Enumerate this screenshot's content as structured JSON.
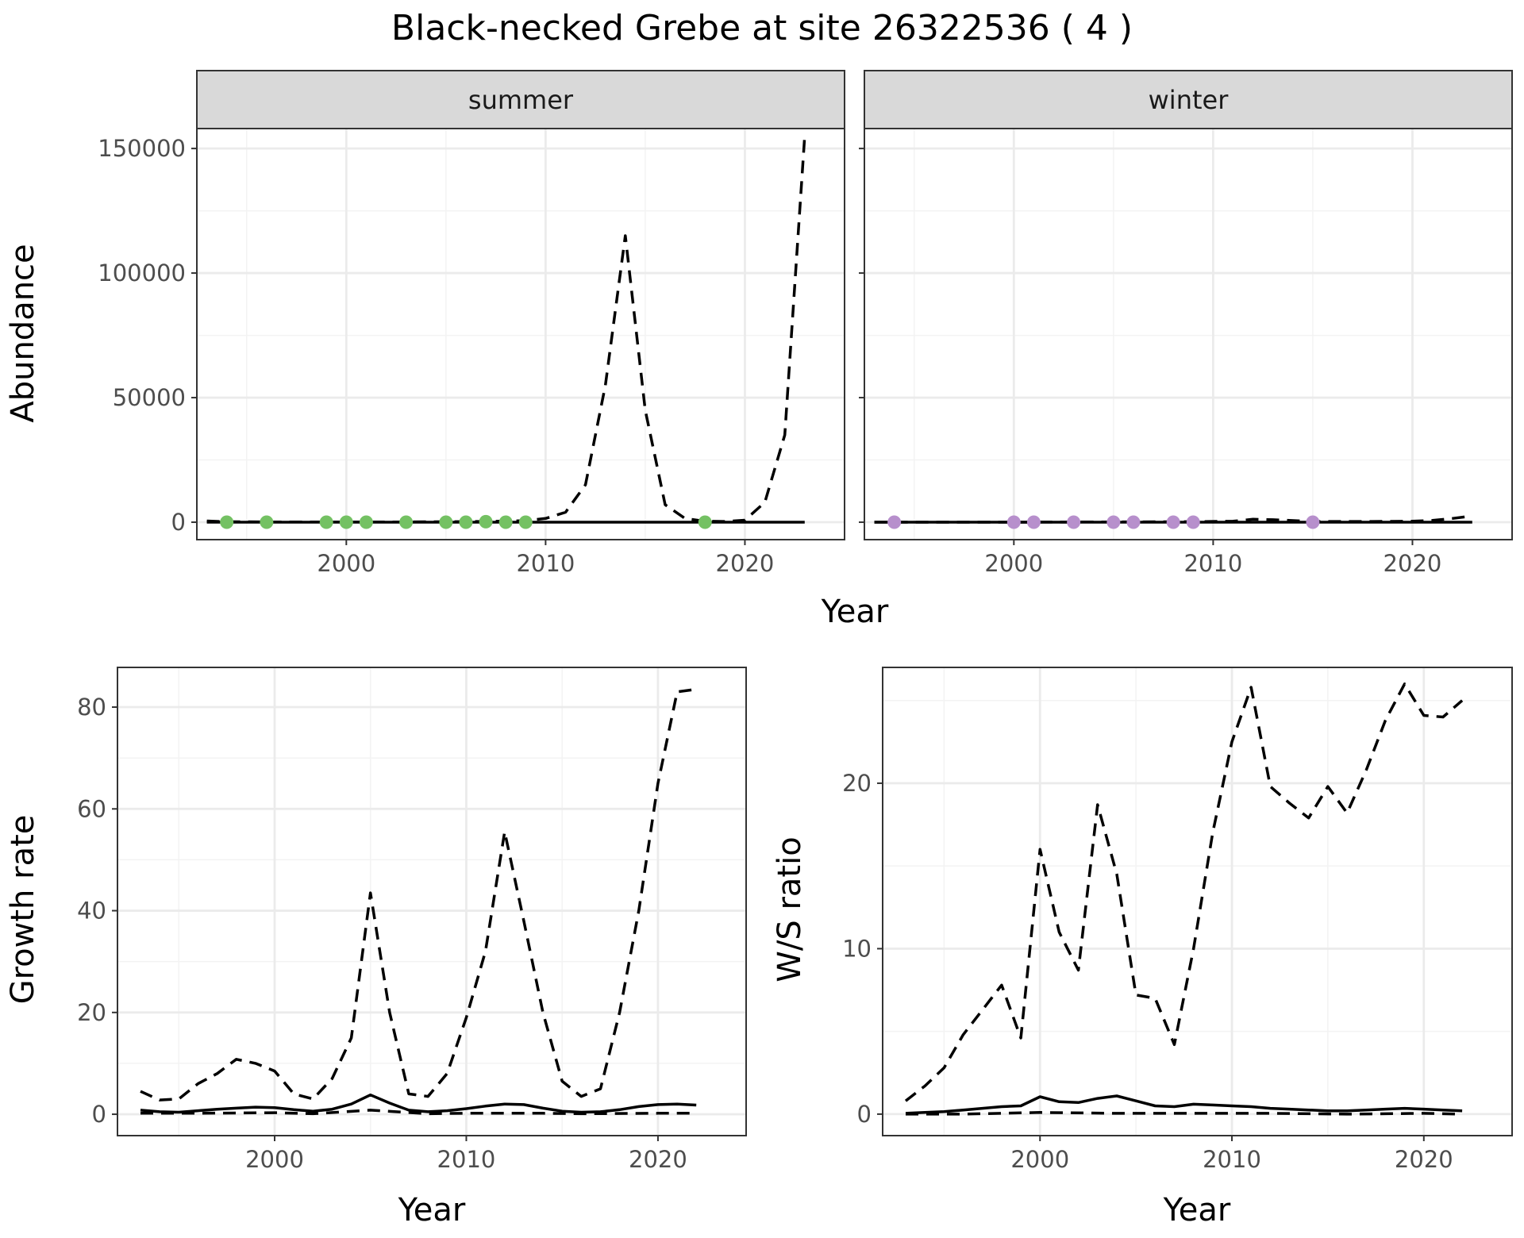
{
  "title": "Black-necked Grebe at site 26322536 ( 4 )",
  "chart_data": [
    {
      "type": "line",
      "facet": "summer",
      "xlabel": "Year",
      "ylabel": "Abundance",
      "xlim": [
        1992.5,
        2025.0
      ],
      "ylim": [
        -7000,
        158000
      ],
      "x_ticks": [
        2000,
        2010,
        2020
      ],
      "y_ticks": [
        0,
        50000,
        100000,
        150000
      ],
      "x_tick_labels": [
        "2000",
        "2010",
        "2020"
      ],
      "y_tick_labels": [
        "0",
        "50000",
        "100000",
        "150000"
      ],
      "grid": true,
      "point_color": "#74c163",
      "points": {
        "x": [
          1994,
          1996,
          1999,
          2000,
          2001,
          2003,
          2005,
          2006,
          2007,
          2008,
          2009,
          2018
        ],
        "y": [
          0,
          0,
          0,
          0,
          0,
          0,
          0,
          0,
          200,
          0,
          0,
          0
        ]
      },
      "series": [
        {
          "style": "solid",
          "x": [
            1993,
            1996,
            2000,
            2005,
            2010,
            2015,
            2020,
            2023
          ],
          "y": [
            0,
            0,
            0,
            0,
            0,
            0,
            0,
            0
          ]
        },
        {
          "style": "dashed",
          "x": [
            1993,
            1994,
            1996,
            1999,
            2001,
            2003,
            2005,
            2007,
            2009,
            2010,
            2011,
            2012,
            2013,
            2014,
            2015,
            2016,
            2017,
            2018,
            2019,
            2020,
            2021,
            2022,
            2023
          ],
          "y": [
            500,
            200,
            100,
            100,
            100,
            100,
            200,
            300,
            600,
            1500,
            4000,
            15000,
            55000,
            115000,
            45000,
            7000,
            1500,
            400,
            300,
            800,
            8000,
            35000,
            155000
          ]
        }
      ]
    },
    {
      "type": "line",
      "facet": "winter",
      "xlabel": "Year",
      "ylabel": "Abundance",
      "xlim": [
        1992.5,
        2025.0
      ],
      "ylim": [
        -7000,
        158000
      ],
      "x_ticks": [
        2000,
        2010,
        2020
      ],
      "x_tick_labels": [
        "2000",
        "2010",
        "2020"
      ],
      "grid": true,
      "point_color": "#b78fcc",
      "points": {
        "x": [
          1994,
          2000,
          2001,
          2003,
          2005,
          2006,
          2008,
          2009,
          2015
        ],
        "y": [
          0,
          0,
          0,
          0,
          0,
          0,
          0,
          0,
          0
        ]
      },
      "series": [
        {
          "style": "solid",
          "x": [
            1993,
            2000,
            2010,
            2020,
            2023
          ],
          "y": [
            0,
            0,
            0,
            0,
            0
          ]
        },
        {
          "style": "dashed",
          "x": [
            1993,
            2000,
            2005,
            2009,
            2011,
            2012,
            2013,
            2015,
            2018,
            2020,
            2021,
            2022,
            2023
          ],
          "y": [
            0,
            0,
            100,
            200,
            400,
            1200,
            1000,
            300,
            300,
            400,
            700,
            1500,
            2500
          ]
        }
      ]
    },
    {
      "type": "line",
      "xlabel": "Year",
      "ylabel": "Growth rate",
      "xlim": [
        1991.8,
        2024.6
      ],
      "ylim": [
        -4.2,
        87.8
      ],
      "x_ticks": [
        2000,
        2010,
        2020
      ],
      "y_ticks": [
        0,
        20,
        40,
        60,
        80
      ],
      "x_tick_labels": [
        "2000",
        "2010",
        "2020"
      ],
      "y_tick_labels": [
        "0",
        "20",
        "40",
        "60",
        "80"
      ],
      "grid": true,
      "series": [
        {
          "style": "solid",
          "x": [
            1993,
            1994,
            1995,
            1996,
            1997,
            1998,
            1999,
            2000,
            2001,
            2002,
            2003,
            2004,
            2005,
            2006,
            2007,
            2008,
            2009,
            2010,
            2011,
            2012,
            2013,
            2014,
            2015,
            2016,
            2017,
            2018,
            2019,
            2020,
            2021,
            2022
          ],
          "y": [
            0.8,
            0.5,
            0.4,
            0.7,
            1.0,
            1.2,
            1.4,
            1.3,
            0.9,
            0.6,
            1.0,
            2.0,
            3.8,
            2.2,
            0.8,
            0.5,
            0.7,
            1.1,
            1.6,
            2.0,
            1.9,
            1.2,
            0.6,
            0.4,
            0.5,
            0.9,
            1.5,
            1.9,
            2.0,
            1.8
          ]
        },
        {
          "style": "dashed",
          "x": [
            1993,
            1994,
            1995,
            1996,
            1997,
            1998,
            1999,
            2000,
            2001,
            2002,
            2003,
            2004,
            2005,
            2006,
            2007,
            2008,
            2009,
            2010,
            2011,
            2012,
            2013,
            2014,
            2015,
            2016,
            2017,
            2018,
            2019,
            2020,
            2021,
            2022
          ],
          "y": [
            4.5,
            2.8,
            3.0,
            6.0,
            8.0,
            10.8,
            10.0,
            8.5,
            4.0,
            3.0,
            7.0,
            15.0,
            43.5,
            20.0,
            4.0,
            3.5,
            8.0,
            19.0,
            32.0,
            55.5,
            38.0,
            20.0,
            6.5,
            3.5,
            5.0,
            20.0,
            40.0,
            65.0,
            83.0,
            83.5
          ]
        },
        {
          "style": "dashed",
          "x": [
            1993,
            1996,
            2000,
            2002,
            2005,
            2008,
            2010,
            2014,
            2016,
            2020,
            2022
          ],
          "y": [
            0.2,
            0.2,
            0.3,
            0.1,
            0.8,
            0.1,
            0.2,
            0.2,
            0.1,
            0.2,
            0.2
          ]
        }
      ]
    },
    {
      "type": "line",
      "xlabel": "Year",
      "ylabel": "W/S ratio",
      "xlim": [
        1991.8,
        2024.6
      ],
      "ylim": [
        -1.3,
        27.0
      ],
      "x_ticks": [
        2000,
        2010,
        2020
      ],
      "y_ticks": [
        0,
        10,
        20
      ],
      "x_tick_labels": [
        "2000",
        "2010",
        "2020"
      ],
      "y_tick_labels": [
        "0",
        "10",
        "20"
      ],
      "grid": true,
      "series": [
        {
          "style": "solid",
          "x": [
            1993,
            1994,
            1995,
            1996,
            1997,
            1998,
            1999,
            2000,
            2001,
            2002,
            2003,
            2004,
            2005,
            2006,
            2007,
            2008,
            2009,
            2010,
            2011,
            2012,
            2013,
            2014,
            2015,
            2016,
            2017,
            2018,
            2019,
            2020,
            2021,
            2022
          ],
          "y": [
            0.05,
            0.1,
            0.15,
            0.25,
            0.35,
            0.45,
            0.5,
            1.05,
            0.75,
            0.7,
            0.95,
            1.1,
            0.8,
            0.5,
            0.45,
            0.6,
            0.55,
            0.5,
            0.45,
            0.35,
            0.3,
            0.25,
            0.2,
            0.2,
            0.25,
            0.3,
            0.35,
            0.3,
            0.25,
            0.2
          ]
        },
        {
          "style": "dashed",
          "x": [
            1993,
            1994,
            1995,
            1996,
            1997,
            1998,
            1999,
            2000,
            2001,
            2002,
            2003,
            2004,
            2005,
            2006,
            2007,
            2008,
            2009,
            2010,
            2011,
            2012,
            2013,
            2014,
            2015,
            2016,
            2017,
            2018,
            2019,
            2020,
            2021,
            2022
          ],
          "y": [
            0.8,
            1.7,
            2.8,
            4.8,
            6.3,
            7.8,
            4.6,
            16.0,
            11.0,
            8.7,
            18.7,
            14.5,
            7.2,
            7.0,
            4.2,
            10.0,
            17.0,
            22.5,
            25.8,
            19.8,
            18.8,
            17.9,
            19.8,
            18.2,
            20.8,
            23.8,
            26.0,
            24.1,
            24.0,
            25.0
          ]
        },
        {
          "style": "dashed",
          "x": [
            1993,
            1996,
            2000,
            2004,
            2008,
            2012,
            2016,
            2020,
            2022
          ],
          "y": [
            0.0,
            0.0,
            0.1,
            0.05,
            0.05,
            0.05,
            0.0,
            0.05,
            0.0
          ]
        }
      ]
    }
  ],
  "facets": {
    "summer": "summer",
    "winter": "winter"
  },
  "labels": {
    "year": "Year",
    "abundance": "Abundance",
    "growth": "Growth rate",
    "ws": "W/S ratio"
  }
}
